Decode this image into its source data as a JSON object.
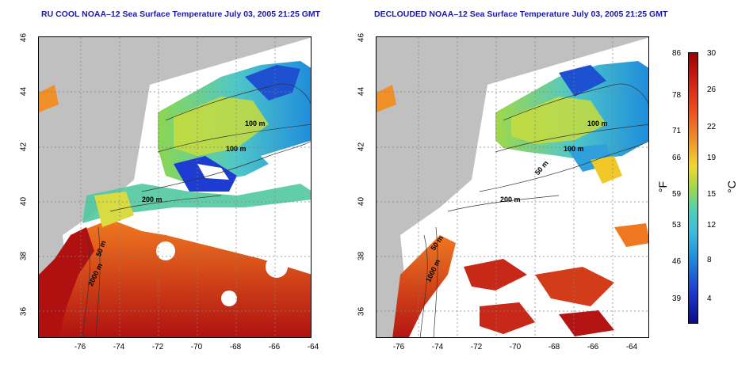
{
  "titles": {
    "left": "RU COOL NOAA–12 Sea Surface Temperature July 03, 2005 21:25 GMT",
    "right": "DECLOUDED NOAA–12 Sea Surface Temperature July 03, 2005 21:25 GMT"
  },
  "axes": {
    "x_ticks": [
      "-76",
      "-74",
      "-72",
      "-70",
      "-68",
      "-66",
      "-64"
    ],
    "y_ticks": [
      "46",
      "44",
      "42",
      "40",
      "38",
      "36"
    ]
  },
  "contour_labels": {
    "left": [
      "100 m",
      "100 m",
      "200 m",
      "50 m",
      "2000 m"
    ],
    "right": [
      "100 m",
      "100 m",
      "50 m",
      "200 m",
      "50 m",
      "1000 m"
    ]
  },
  "colorbar": {
    "fahrenheit_ticks": [
      "86",
      "78",
      "71",
      "66",
      "59",
      "53",
      "46",
      "39"
    ],
    "celsius_ticks": [
      "30",
      "26",
      "22",
      "19",
      "15",
      "12",
      "8",
      "4"
    ],
    "fahrenheit_label": "°F",
    "celsius_label": "°C",
    "range_c": [
      0,
      30
    ]
  },
  "colors": {
    "land": "#c0c0c0",
    "cloud": "#ffffff",
    "title": "#1a1aa6",
    "warm": "#c81e14",
    "cold": "#1e3cd2",
    "mid": "#5ad2c8"
  }
}
